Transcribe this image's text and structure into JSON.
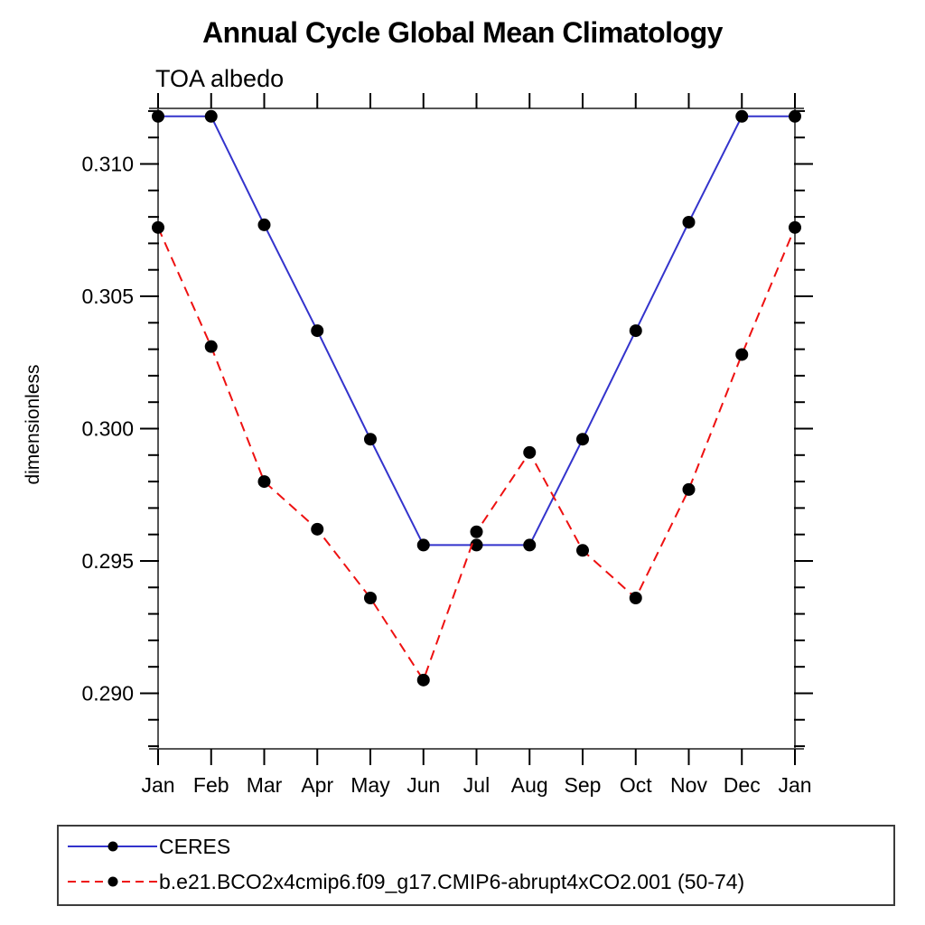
{
  "title": "Annual Cycle Global Mean Climatology",
  "subtitle": "TOA albedo",
  "ylabel": "dimensionless",
  "colors": {
    "ceres_line": "#3333cc",
    "model_line": "#ee1111",
    "marker": "#000000",
    "axis_box": "#555555",
    "tick": "#000000",
    "text": "#000000"
  },
  "legend": {
    "entries": [
      {
        "label": "CERES",
        "line": "solid",
        "color": "#3333cc",
        "marker": "circle"
      },
      {
        "label": "b.e21.BCO2x4cmip6.f09_g17.CMIP6-abrupt4xCO2.001 (50-74)",
        "line": "dashed",
        "color": "#ee1111",
        "marker": "circle"
      }
    ],
    "position": "bottom-left-box"
  },
  "chart_data": {
    "type": "line",
    "title": "Annual Cycle Global Mean Climatology",
    "subtitle": "TOA albedo",
    "xlabel": "",
    "ylabel": "dimensionless",
    "categories": [
      "Jan",
      "Feb",
      "Mar",
      "Apr",
      "May",
      "Jun",
      "Jul",
      "Aug",
      "Sep",
      "Oct",
      "Nov",
      "Dec",
      "Jan"
    ],
    "series": [
      {
        "name": "CERES",
        "line": "solid",
        "color": "#3333cc",
        "marker": "circle",
        "marker_color": "#000000",
        "values": [
          0.3118,
          0.3118,
          0.3077,
          0.3037,
          0.2996,
          0.2956,
          0.2956,
          0.2956,
          0.2996,
          0.3037,
          0.3078,
          0.3118,
          0.3118
        ]
      },
      {
        "name": "b.e21.BCO2x4cmip6.f09_g17.CMIP6-abrupt4xCO2.001 (50-74)",
        "line": "dashed",
        "color": "#ee1111",
        "marker": "circle",
        "marker_color": "#000000",
        "values": [
          0.3076,
          0.3031,
          0.298,
          0.2962,
          0.2936,
          0.2905,
          0.2961,
          0.2991,
          0.2954,
          0.2936,
          0.2977,
          0.3028,
          0.3076
        ]
      }
    ],
    "ylim": [
      0.2879,
      0.3121
    ],
    "yticks_major": [
      0.29,
      0.295,
      0.3,
      0.305,
      0.31
    ],
    "ytick_labels": [
      "0.290",
      "0.295",
      "0.300",
      "0.305",
      "0.310"
    ],
    "ytick_minor_step": 0.001,
    "grid": false,
    "legend_position": "bottom-left-box"
  }
}
